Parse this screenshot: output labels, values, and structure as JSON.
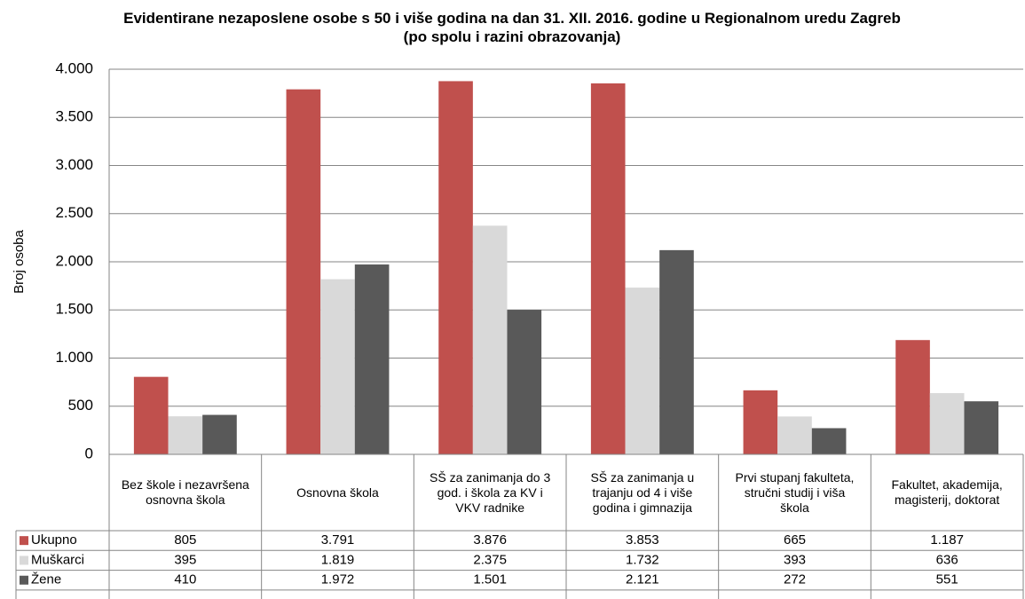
{
  "chart_data": {
    "type": "bar",
    "title": "Evidentirane nezaposlene osobe s 50 i više godina na dan 31. XII. 2016. godine u Regionalnom uredu Zagreb (po spolu i razini obrazovanja)",
    "y_label": "Broj osoba",
    "categories": [
      "Bez škole i nezavršena osnovna škola",
      "Osnovna škola",
      "SŠ za zanimanja do 3 god. i škola za KV i VKV radnike",
      "SŠ za zanimanja u trajanju od 4 i više godina i gimnazija",
      "Prvi stupanj fakulteta, stručni studij i viša škola",
      "Fakultet, akademija, magisterij, doktorat"
    ],
    "series": [
      {
        "name": "Ukupno",
        "color": "#c0504d",
        "values": [
          805,
          3791,
          3876,
          3853,
          665,
          1187
        ],
        "value_labels": [
          "805",
          "3.791",
          "3.876",
          "3.853",
          "665",
          "1.187"
        ]
      },
      {
        "name": "Muškarci",
        "color": "#d9d9d9",
        "values": [
          395,
          1819,
          2375,
          1732,
          393,
          636
        ],
        "value_labels": [
          "395",
          "1.819",
          "2.375",
          "1.732",
          "393",
          "636"
        ]
      },
      {
        "name": "Žene",
        "color": "#595959",
        "values": [
          410,
          1972,
          1501,
          2121,
          272,
          551
        ],
        "value_labels": [
          "410",
          "1.972",
          "1.501",
          "2.121",
          "272",
          "551"
        ]
      }
    ],
    "ylim": [
      0,
      4000
    ],
    "yticks": [
      0,
      500,
      {
        "value": 1000,
        "label": "1.000"
      },
      {
        "value": 1500,
        "label": "1.500"
      },
      {
        "value": 2000,
        "label": "2.000"
      },
      {
        "value": 2500,
        "label": "2.500"
      },
      {
        "value": 3000,
        "label": "3.000"
      },
      {
        "value": 3500,
        "label": "3.500"
      },
      {
        "value": 4000,
        "label": "4.000"
      }
    ],
    "grid": true
  }
}
